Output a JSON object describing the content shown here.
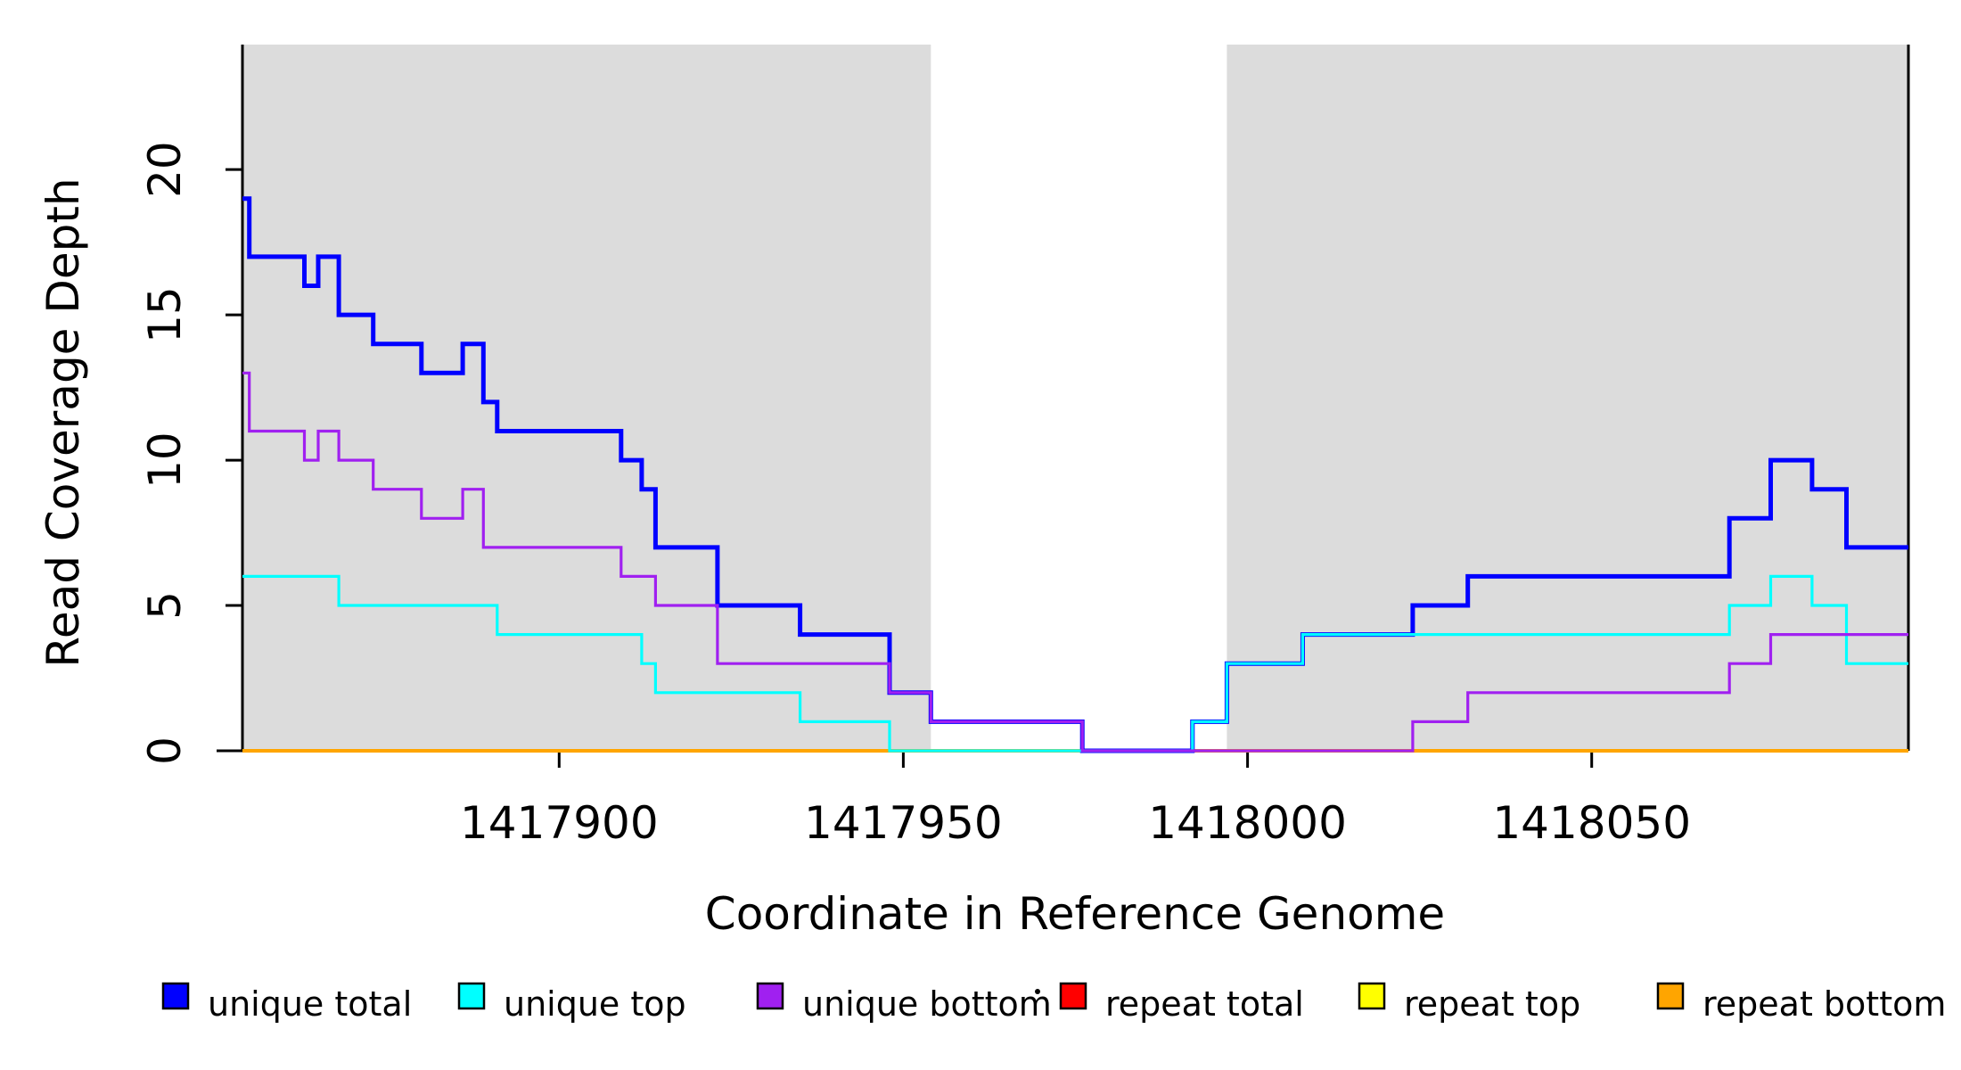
{
  "figure": {
    "background": "#FFFFFF",
    "region_fill": "#DCDCDC",
    "axis_color": "#000000"
  },
  "chart_data": {
    "type": "line",
    "subtype": "step",
    "title": "",
    "xlabel": "Coordinate in Reference Genome",
    "ylabel": "Read Coverage Depth",
    "xlim": [
      1417854,
      1418096
    ],
    "ylim": [
      0,
      24.3
    ],
    "x_ticks": [
      1417900,
      1417950,
      1418000,
      1418050
    ],
    "y_ticks": [
      0,
      5,
      10,
      15,
      20
    ],
    "grid": false,
    "legend_position": "bottom",
    "shaded_regions": [
      {
        "name": "left-unique-region",
        "x0": 1417854,
        "x1": 1417954
      },
      {
        "name": "right-unique-region",
        "x0": 1417997,
        "x1": 1418096
      }
    ],
    "series": [
      {
        "name": "repeat total",
        "color": "#FF0000",
        "lwd": 3.2,
        "points": [
          [
            1417854,
            0
          ],
          [
            1418096,
            0
          ]
        ]
      },
      {
        "name": "repeat top",
        "color": "#FFFF00",
        "lwd": 3.2,
        "points": [
          [
            1417854,
            0
          ],
          [
            1418096,
            0
          ]
        ]
      },
      {
        "name": "repeat bottom",
        "color": "#FFA500",
        "lwd": 4,
        "points": [
          [
            1417854,
            0
          ],
          [
            1418096,
            0
          ]
        ]
      },
      {
        "name": "unique total",
        "color": "#0000FF",
        "lwd": 5,
        "points": [
          [
            1417854,
            19
          ],
          [
            1417855,
            17
          ],
          [
            1417863,
            16
          ],
          [
            1417865,
            17
          ],
          [
            1417868,
            15
          ],
          [
            1417873,
            14
          ],
          [
            1417880,
            13
          ],
          [
            1417886,
            14
          ],
          [
            1417889,
            12
          ],
          [
            1417891,
            11
          ],
          [
            1417909,
            10
          ],
          [
            1417912,
            9
          ],
          [
            1417914,
            7
          ],
          [
            1417923,
            5
          ],
          [
            1417935,
            4
          ],
          [
            1417948,
            2
          ],
          [
            1417954,
            1
          ],
          [
            1417976,
            0
          ],
          [
            1417992,
            1
          ],
          [
            1417997,
            3
          ],
          [
            1418008,
            4
          ],
          [
            1418024,
            5
          ],
          [
            1418032,
            6
          ],
          [
            1418070,
            8
          ],
          [
            1418076,
            10
          ],
          [
            1418082,
            9
          ],
          [
            1418087,
            7
          ],
          [
            1418096,
            7
          ]
        ]
      },
      {
        "name": "unique top",
        "color": "#00FFFF",
        "lwd": 3.2,
        "points": [
          [
            1417854,
            6
          ],
          [
            1417868,
            5
          ],
          [
            1417891,
            4
          ],
          [
            1417912,
            3
          ],
          [
            1417914,
            2
          ],
          [
            1417935,
            1
          ],
          [
            1417948,
            0
          ],
          [
            1417992,
            1
          ],
          [
            1417997,
            3
          ],
          [
            1418008,
            4
          ],
          [
            1418070,
            5
          ],
          [
            1418076,
            6
          ],
          [
            1418082,
            5
          ],
          [
            1418087,
            3
          ],
          [
            1418096,
            3
          ]
        ]
      },
      {
        "name": "unique bottom",
        "color": "#A020F0",
        "lwd": 3.2,
        "points": [
          [
            1417854,
            13
          ],
          [
            1417855,
            11
          ],
          [
            1417863,
            10
          ],
          [
            1417865,
            11
          ],
          [
            1417868,
            10
          ],
          [
            1417873,
            9
          ],
          [
            1417880,
            8
          ],
          [
            1417886,
            9
          ],
          [
            1417889,
            7
          ],
          [
            1417909,
            6
          ],
          [
            1417914,
            5
          ],
          [
            1417923,
            3
          ],
          [
            1417948,
            2
          ],
          [
            1417954,
            1
          ],
          [
            1417976,
            0
          ],
          [
            1418024,
            1
          ],
          [
            1418032,
            2
          ],
          [
            1418070,
            3
          ],
          [
            1418076,
            4
          ],
          [
            1418096,
            4
          ]
        ]
      }
    ],
    "legend": {
      "entries": [
        {
          "label": "unique total",
          "color": "#0000FF"
        },
        {
          "label": "unique top",
          "color": "#00FFFF"
        },
        {
          "label": "unique bottom",
          "color": "#A020F0"
        },
        {
          "label": "repeat total",
          "color": "#FF0000"
        },
        {
          "label": "repeat top",
          "color": "#FFFF00"
        },
        {
          "label": "repeat bottom",
          "color": "#FFA500"
        }
      ]
    },
    "annotation_dot": {
      "x": 1164,
      "y": 1112
    }
  }
}
